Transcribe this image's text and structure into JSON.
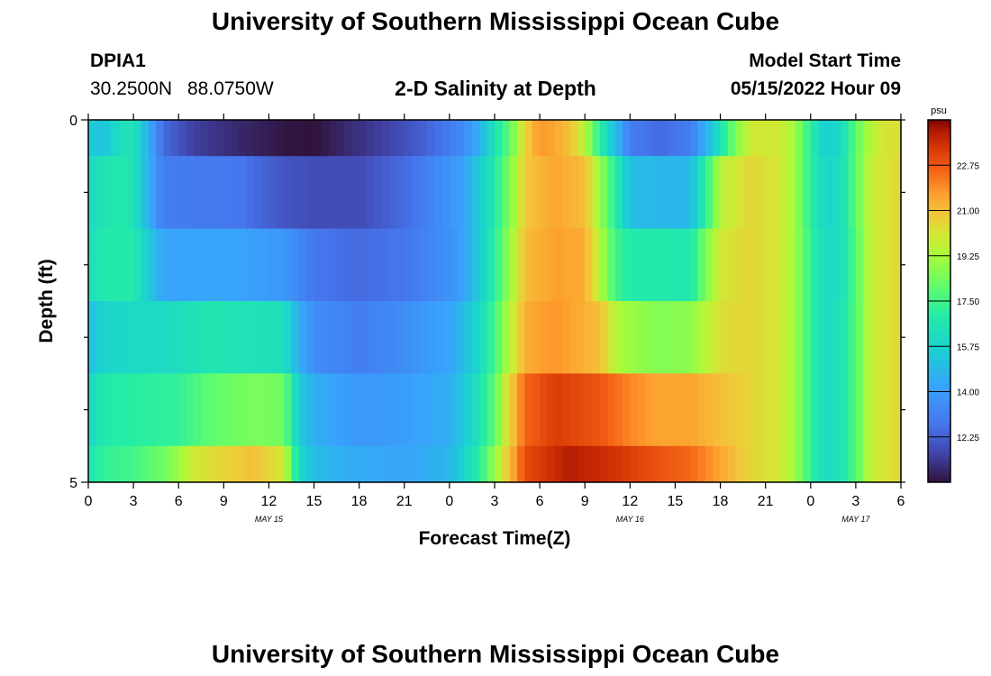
{
  "page": {
    "title": "University of Southern Mississippi Ocean Cube",
    "footer_title": "University of Southern Mississippi Ocean Cube",
    "station": {
      "id": "DPIA1",
      "lat": "30.2500N",
      "lon": "88.0750W"
    },
    "model": {
      "label": "Model Start Time",
      "start": "05/15/2022 Hour 09"
    }
  },
  "chart_data": {
    "type": "heatmap",
    "title": "2-D Salinity at Depth",
    "xlabel": "Forecast Time(Z)",
    "ylabel": "Depth (ft)",
    "x_ticks": [
      "0",
      "3",
      "6",
      "9",
      "12",
      "15",
      "18",
      "21",
      "0",
      "3",
      "6",
      "9",
      "12",
      "15",
      "18",
      "21",
      "0",
      "3",
      "6"
    ],
    "x_day_labels": [
      {
        "label": "MAY 15",
        "hour_index": 12
      },
      {
        "label": "MAY 16",
        "hour_index": 36
      },
      {
        "label": "MAY 17",
        "hour_index": 51
      }
    ],
    "x_range_hours": [
      0,
      54
    ],
    "y_ticks": [
      "0",
      "5"
    ],
    "y_range_ft": [
      0,
      5
    ],
    "colorbar": {
      "unit": "psu",
      "range": [
        10.5,
        24.5
      ],
      "ticks": [
        "22.75",
        "21.00",
        "19.25",
        "17.50",
        "15.75",
        "14.00",
        "12.25"
      ]
    },
    "layers": [
      {
        "depth_from": 0,
        "depth_to": 0.5,
        "keys": [
          [
            0,
            15.5
          ],
          [
            1,
            15.2
          ],
          [
            2,
            16.2
          ],
          [
            3,
            16.5
          ],
          [
            4,
            14.5
          ],
          [
            5,
            12.5
          ],
          [
            7,
            11.5
          ],
          [
            10,
            11.0
          ],
          [
            13,
            10.6
          ],
          [
            15,
            10.5
          ],
          [
            17,
            11.0
          ],
          [
            20,
            11.6
          ],
          [
            23,
            12.5
          ],
          [
            25,
            13.5
          ],
          [
            26,
            14.5
          ],
          [
            27,
            16.5
          ],
          [
            28,
            18.0
          ],
          [
            29,
            20.5
          ],
          [
            30,
            21.8
          ],
          [
            32,
            21.0
          ],
          [
            33,
            19.5
          ],
          [
            34,
            17.0
          ],
          [
            35,
            15.0
          ],
          [
            36,
            13.0
          ],
          [
            38,
            12.5
          ],
          [
            40,
            13.0
          ],
          [
            41,
            14.5
          ],
          [
            42,
            16.5
          ],
          [
            43,
            18.5
          ],
          [
            44,
            20.0
          ],
          [
            46,
            20.0
          ],
          [
            47,
            19.0
          ],
          [
            48,
            17.0
          ],
          [
            49,
            15.5
          ],
          [
            50,
            16.0
          ],
          [
            51,
            18.0
          ],
          [
            52,
            19.5
          ],
          [
            53,
            20.2
          ],
          [
            54,
            20.2
          ]
        ]
      },
      {
        "depth_from": 0.5,
        "depth_to": 1.5,
        "keys": [
          [
            0,
            16.0
          ],
          [
            1,
            16.5
          ],
          [
            2,
            16.8
          ],
          [
            3,
            16.5
          ],
          [
            4,
            14.5
          ],
          [
            5,
            13.0
          ],
          [
            10,
            12.8
          ],
          [
            13,
            12.0
          ],
          [
            15,
            11.8
          ],
          [
            18,
            11.8
          ],
          [
            21,
            12.5
          ],
          [
            23,
            13.3
          ],
          [
            25,
            14.2
          ],
          [
            26,
            15.5
          ],
          [
            27,
            16.8
          ],
          [
            28,
            18.5
          ],
          [
            29,
            20.8
          ],
          [
            31,
            21.5
          ],
          [
            33,
            21.0
          ],
          [
            34,
            19.0
          ],
          [
            35,
            17.0
          ],
          [
            36,
            15.0
          ],
          [
            38,
            14.8
          ],
          [
            40,
            14.8
          ],
          [
            41,
            17.0
          ],
          [
            42,
            19.5
          ],
          [
            44,
            20.5
          ],
          [
            46,
            20.0
          ],
          [
            47,
            19.0
          ],
          [
            48,
            17.0
          ],
          [
            49,
            15.8
          ],
          [
            50,
            16.2
          ],
          [
            51,
            18.0
          ],
          [
            52,
            19.8
          ],
          [
            54,
            20.5
          ]
        ]
      },
      {
        "depth_from": 1.5,
        "depth_to": 2.5,
        "keys": [
          [
            0,
            16.2
          ],
          [
            1,
            16.8
          ],
          [
            3,
            16.8
          ],
          [
            4,
            15.5
          ],
          [
            5,
            14.2
          ],
          [
            10,
            14.2
          ],
          [
            13,
            13.8
          ],
          [
            15,
            12.8
          ],
          [
            18,
            12.5
          ],
          [
            21,
            12.8
          ],
          [
            24,
            13.6
          ],
          [
            25,
            14.2
          ],
          [
            26,
            15.5
          ],
          [
            27,
            17.0
          ],
          [
            28,
            19.0
          ],
          [
            29,
            21.0
          ],
          [
            31,
            21.6
          ],
          [
            33,
            21.4
          ],
          [
            34,
            19.5
          ],
          [
            35,
            17.5
          ],
          [
            36,
            16.8
          ],
          [
            38,
            16.8
          ],
          [
            40,
            16.6
          ],
          [
            41,
            18.5
          ],
          [
            42,
            20.0
          ],
          [
            44,
            20.5
          ],
          [
            46,
            20.0
          ],
          [
            47,
            19.0
          ],
          [
            48,
            17.2
          ],
          [
            49,
            16.0
          ],
          [
            50,
            16.2
          ],
          [
            51,
            17.8
          ],
          [
            52,
            19.8
          ],
          [
            54,
            20.5
          ]
        ]
      },
      {
        "depth_from": 2.5,
        "depth_to": 3.5,
        "keys": [
          [
            0,
            15.0
          ],
          [
            1,
            15.8
          ],
          [
            3,
            16.0
          ],
          [
            5,
            16.0
          ],
          [
            8,
            16.6
          ],
          [
            13,
            16.3
          ],
          [
            14,
            14.5
          ],
          [
            15,
            13.5
          ],
          [
            18,
            13.0
          ],
          [
            21,
            13.5
          ],
          [
            24,
            14.2
          ],
          [
            25,
            15.0
          ],
          [
            26,
            16.0
          ],
          [
            27,
            17.5
          ],
          [
            28,
            19.5
          ],
          [
            29,
            21.3
          ],
          [
            31,
            21.8
          ],
          [
            34,
            21.0
          ],
          [
            35,
            19.5
          ],
          [
            36,
            19.0
          ],
          [
            38,
            18.6
          ],
          [
            40,
            18.8
          ],
          [
            41,
            19.5
          ],
          [
            42,
            20.3
          ],
          [
            44,
            20.5
          ],
          [
            46,
            20.0
          ],
          [
            47,
            19.0
          ],
          [
            48,
            17.2
          ],
          [
            49,
            16.0
          ],
          [
            50,
            16.5
          ],
          [
            51,
            17.8
          ],
          [
            52,
            19.8
          ],
          [
            54,
            20.5
          ]
        ]
      },
      {
        "depth_from": 3.5,
        "depth_to": 4.5,
        "keys": [
          [
            0,
            15.8
          ],
          [
            1,
            16.8
          ],
          [
            3,
            17.0
          ],
          [
            6,
            17.2
          ],
          [
            8,
            18.0
          ],
          [
            11,
            18.5
          ],
          [
            13,
            18.3
          ],
          [
            14,
            15.5
          ],
          [
            15,
            14.5
          ],
          [
            18,
            13.8
          ],
          [
            21,
            14.0
          ],
          [
            24,
            14.5
          ],
          [
            25,
            15.5
          ],
          [
            26,
            16.5
          ],
          [
            27,
            18.0
          ],
          [
            28,
            20.5
          ],
          [
            29,
            22.5
          ],
          [
            31,
            23.3
          ],
          [
            34,
            22.8
          ],
          [
            36,
            22.0
          ],
          [
            38,
            21.5
          ],
          [
            40,
            21.5
          ],
          [
            42,
            21.0
          ],
          [
            44,
            20.5
          ],
          [
            46,
            20.0
          ],
          [
            47,
            19.0
          ],
          [
            48,
            17.2
          ],
          [
            49,
            16.0
          ],
          [
            50,
            16.5
          ],
          [
            51,
            17.8
          ],
          [
            52,
            19.8
          ],
          [
            54,
            20.5
          ]
        ]
      },
      {
        "depth_from": 4.5,
        "depth_to": 5.0,
        "keys": [
          [
            0,
            16.5
          ],
          [
            1,
            17.2
          ],
          [
            3,
            17.5
          ],
          [
            5,
            18.3
          ],
          [
            6,
            19.0
          ],
          [
            7,
            20.0
          ],
          [
            9,
            20.5
          ],
          [
            11,
            21.0
          ],
          [
            13,
            20.0
          ],
          [
            14,
            16.0
          ],
          [
            15,
            15.0
          ],
          [
            17,
            14.5
          ],
          [
            21,
            14.2
          ],
          [
            24,
            14.8
          ],
          [
            25,
            15.8
          ],
          [
            26,
            17.0
          ],
          [
            27,
            19.0
          ],
          [
            28,
            21.0
          ],
          [
            29,
            23.0
          ],
          [
            32,
            24.0
          ],
          [
            35,
            23.5
          ],
          [
            38,
            22.8
          ],
          [
            40,
            22.5
          ],
          [
            42,
            21.5
          ],
          [
            44,
            20.5
          ],
          [
            46,
            20.0
          ],
          [
            47,
            19.0
          ],
          [
            48,
            17.2
          ],
          [
            49,
            16.0
          ],
          [
            50,
            16.5
          ],
          [
            51,
            17.8
          ],
          [
            52,
            19.8
          ],
          [
            54,
            20.5
          ]
        ]
      }
    ]
  }
}
